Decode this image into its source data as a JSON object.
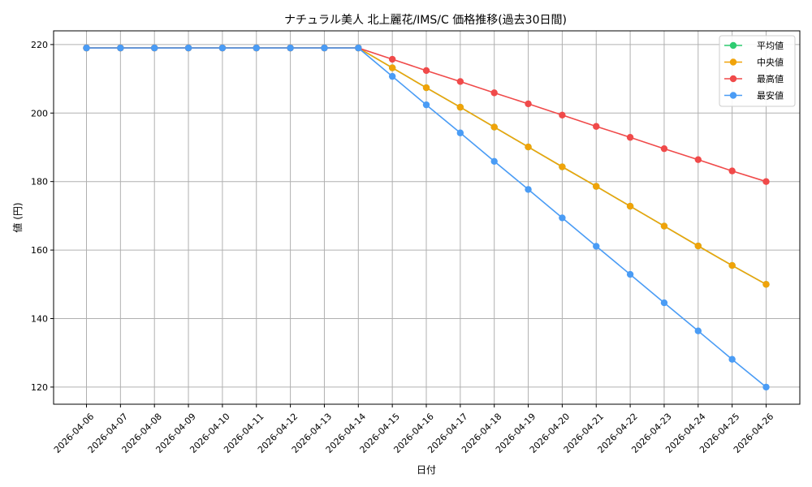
{
  "chart_data": {
    "type": "line",
    "title": "ナチュラル美人 北上麗花/IMS/C 価格推移(過去30日間)",
    "xlabel": "日付",
    "ylabel": "値 (円)",
    "ylim": [
      115,
      224
    ],
    "yticks": [
      120,
      140,
      160,
      180,
      200,
      220
    ],
    "grid": true,
    "legend_position": "top-right",
    "categories": [
      "2026-04-06",
      "2026-04-07",
      "2026-04-08",
      "2026-04-09",
      "2026-04-10",
      "2026-04-11",
      "2026-04-12",
      "2026-04-13",
      "2026-04-14",
      "2026-04-15",
      "2026-04-16",
      "2026-04-17",
      "2026-04-18",
      "2026-04-19",
      "2026-04-20",
      "2026-04-21",
      "2026-04-22",
      "2026-04-23",
      "2026-04-24",
      "2026-04-25",
      "2026-04-26"
    ],
    "series": [
      {
        "name": "平均値",
        "color": "#2ecc71",
        "values": [
          219,
          219,
          219,
          219,
          219,
          219,
          219,
          219,
          219,
          213.2,
          207.4,
          201.7,
          195.9,
          190.1,
          184.3,
          178.6,
          172.8,
          167.0,
          161.2,
          155.5,
          150
        ]
      },
      {
        "name": "中央値",
        "color": "#f0a30a",
        "values": [
          219,
          219,
          219,
          219,
          219,
          219,
          219,
          219,
          219,
          213.2,
          207.4,
          201.7,
          195.9,
          190.1,
          184.3,
          178.6,
          172.8,
          167.0,
          161.2,
          155.5,
          150
        ]
      },
      {
        "name": "最高値",
        "color": "#f04a4a",
        "values": [
          219,
          219,
          219,
          219,
          219,
          219,
          219,
          219,
          219,
          215.7,
          212.4,
          209.2,
          205.9,
          202.7,
          199.4,
          196.1,
          192.9,
          189.6,
          186.4,
          183.1,
          180
        ]
      },
      {
        "name": "最安値",
        "color": "#4a9cf5",
        "values": [
          219,
          219,
          219,
          219,
          219,
          219,
          219,
          219,
          219,
          210.7,
          202.4,
          194.2,
          185.9,
          177.7,
          169.4,
          161.1,
          152.9,
          144.6,
          136.4,
          128.1,
          120
        ]
      }
    ]
  }
}
